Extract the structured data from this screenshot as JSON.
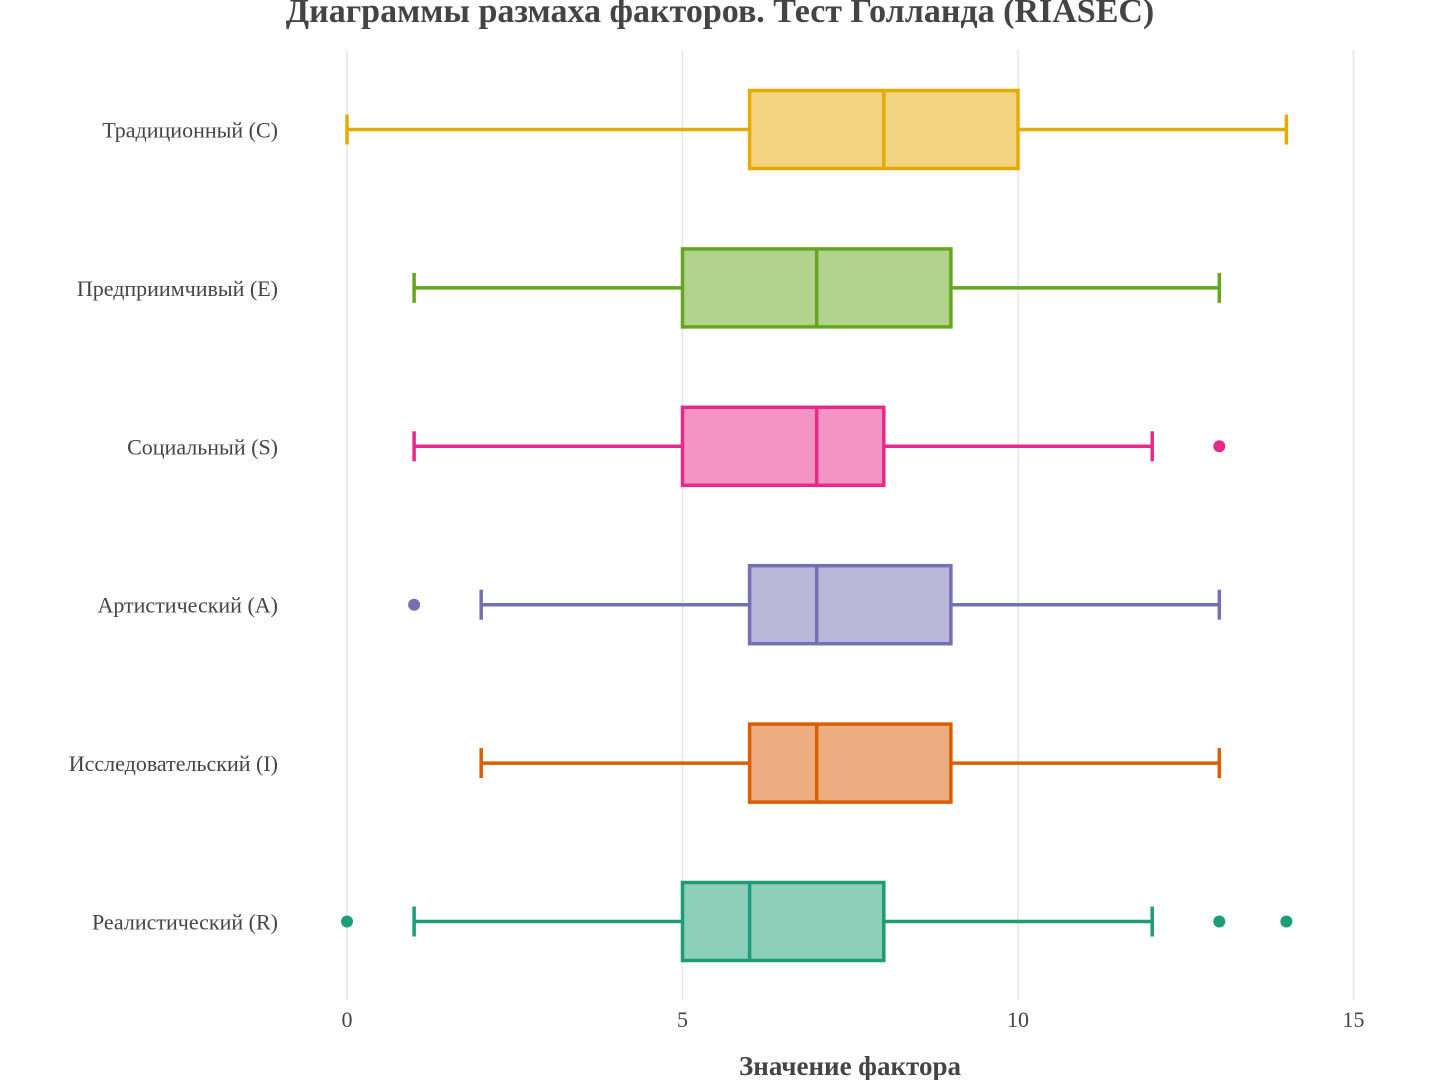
{
  "chart_data": {
    "type": "box",
    "orientation": "horizontal",
    "title": "Диаграммы размаха факторов. Тест Голланда (RIASEC)",
    "xlabel": "Значение фактора",
    "ylabel": "",
    "xlim": [
      -2.5,
      15.5
    ],
    "xticks": [
      0,
      5,
      10,
      15
    ],
    "grid": true,
    "legend": "none",
    "series": [
      {
        "category": "Реалистический (R)",
        "color": "#1b9e77",
        "fill": "#8ecfba",
        "whisker_low": 1,
        "q1": 5,
        "median": 6,
        "q3": 8,
        "whisker_high": 12,
        "outliers": [
          0,
          13,
          14
        ]
      },
      {
        "category": "Исследовательский (I)",
        "color": "#d95f02",
        "fill": "#ecae80",
        "whisker_low": 2,
        "q1": 6,
        "median": 7,
        "q3": 9,
        "whisker_high": 13,
        "outliers": []
      },
      {
        "category": "Артистический (A)",
        "color": "#7570b3",
        "fill": "#bab7d9",
        "whisker_low": 2,
        "q1": 6,
        "median": 7,
        "q3": 9,
        "whisker_high": 13,
        "outliers": [
          1
        ]
      },
      {
        "category": "Социальный (S)",
        "color": "#e7298a",
        "fill": "#f394c4",
        "whisker_low": 1,
        "q1": 5,
        "median": 7,
        "q3": 8,
        "whisker_high": 12,
        "outliers": [
          13
        ]
      },
      {
        "category": "Предприимчивый (E)",
        "color": "#66a61e",
        "fill": "#b2d38e",
        "whisker_low": 1,
        "q1": 5,
        "median": 7,
        "q3": 9,
        "whisker_high": 13,
        "outliers": []
      },
      {
        "category": "Традиционный (C)",
        "color": "#e6ab02",
        "fill": "#f3d581",
        "whisker_low": 0,
        "q1": 6,
        "median": 8,
        "q3": 10,
        "whisker_high": 14,
        "outliers": []
      }
    ]
  }
}
